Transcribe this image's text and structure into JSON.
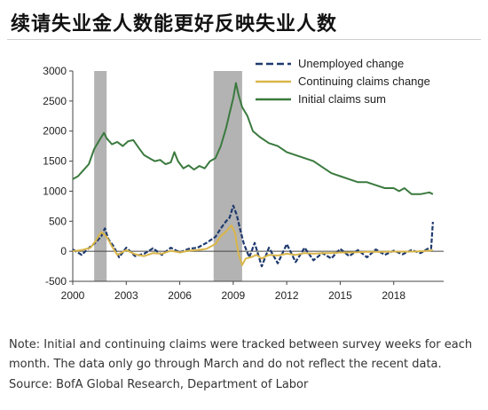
{
  "title": "续请失业金人数能更好反映失业人数",
  "note": "Note: Initial and continuing claims were tracked between survey weeks for each month. The data only go through March and do not reflect the recent data.",
  "source": "Source: BofA Global Research, Department of Labor",
  "chart_data": {
    "type": "line",
    "xlim": [
      2000,
      2020.8
    ],
    "ylim": [
      -500,
      3000
    ],
    "x_ticks": [
      2000,
      2003,
      2006,
      2009,
      2012,
      2015,
      2018
    ],
    "x_tick_labels": [
      "2000",
      "2003",
      "2006",
      "2009",
      "2012",
      "2015",
      "2018"
    ],
    "y_ticks": [
      -500,
      0,
      500,
      1000,
      1500,
      2000,
      2500,
      3000
    ],
    "y_tick_labels": [
      "-500",
      "0",
      "500",
      "1000",
      "1500",
      "2000",
      "2500",
      "3000"
    ],
    "grid": false,
    "legend_position": "top-right",
    "recessions": [
      [
        2001.2,
        2001.9
      ],
      [
        2007.9,
        2009.5
      ]
    ],
    "series": [
      {
        "name": "Unemployed change",
        "color": "#1f3a6e",
        "style": "dashed",
        "x": [
          2000,
          2000.5,
          2001,
          2001.3,
          2001.6,
          2001.8,
          2002.0,
          2002.3,
          2002.6,
          2003,
          2003.5,
          2004,
          2004.5,
          2005,
          2005.5,
          2006,
          2006.5,
          2007,
          2007.5,
          2008,
          2008.3,
          2008.6,
          2008.8,
          2009.0,
          2009.2,
          2009.4,
          2009.6,
          2009.9,
          2010.2,
          2010.6,
          2011,
          2011.5,
          2012,
          2012.5,
          2013,
          2013.5,
          2014,
          2014.5,
          2015,
          2015.5,
          2016,
          2016.5,
          2017,
          2017.5,
          2018,
          2018.5,
          2019,
          2019.5,
          2019.9,
          2020.1,
          2020.2
        ],
        "values": [
          30,
          -60,
          80,
          150,
          250,
          380,
          200,
          80,
          -100,
          60,
          -80,
          -40,
          50,
          -60,
          60,
          -20,
          40,
          60,
          140,
          240,
          380,
          500,
          560,
          760,
          600,
          350,
          120,
          -100,
          140,
          -250,
          60,
          -200,
          120,
          -180,
          60,
          -150,
          -30,
          -120,
          40,
          -80,
          20,
          -100,
          30,
          -60,
          10,
          -50,
          20,
          -30,
          40,
          50,
          490
        ]
      },
      {
        "name": "Continuing claims change",
        "color": "#d9b64a",
        "style": "solid",
        "x": [
          2000,
          2000.5,
          2001,
          2001.3,
          2001.6,
          2001.9,
          2002.2,
          2002.5,
          2003,
          2003.5,
          2004,
          2004.5,
          2005,
          2005.5,
          2006,
          2006.5,
          2007,
          2007.5,
          2008,
          2008.3,
          2008.6,
          2008.9,
          2009.1,
          2009.3,
          2009.5,
          2009.7,
          2010,
          2010.3,
          2010.6,
          2011,
          2011.5,
          2012,
          2012.5,
          2013,
          2013.5,
          2014,
          2014.5,
          2015,
          2015.5,
          2016,
          2016.5,
          2017,
          2017.5,
          2018,
          2018.5,
          2019,
          2019.5,
          2020.0,
          2020.2
        ],
        "values": [
          0,
          20,
          60,
          180,
          320,
          240,
          80,
          -60,
          20,
          -50,
          -80,
          -30,
          -40,
          10,
          -20,
          10,
          20,
          40,
          120,
          250,
          330,
          430,
          300,
          -50,
          -230,
          -120,
          -100,
          -60,
          -120,
          -60,
          -70,
          -40,
          -60,
          -30,
          -40,
          -30,
          -30,
          -20,
          -20,
          -15,
          -10,
          -10,
          -10,
          -5,
          -5,
          -5,
          0,
          10,
          20
        ]
      },
      {
        "name": "Initial claims sum",
        "color": "#3a7a3e",
        "style": "solid",
        "x": [
          2000,
          2000.3,
          2000.6,
          2000.9,
          2001.2,
          2001.5,
          2001.75,
          2001.9,
          2002.2,
          2002.5,
          2002.8,
          2003.1,
          2003.4,
          2003.7,
          2004.0,
          2004.3,
          2004.6,
          2004.9,
          2005.2,
          2005.5,
          2005.7,
          2005.9,
          2006.2,
          2006.5,
          2006.8,
          2007.1,
          2007.4,
          2007.7,
          2008.0,
          2008.3,
          2008.6,
          2008.8,
          2009.0,
          2009.15,
          2009.3,
          2009.5,
          2009.8,
          2010.1,
          2010.5,
          2011,
          2011.5,
          2012,
          2012.5,
          2013,
          2013.5,
          2014,
          2014.5,
          2015,
          2015.5,
          2016,
          2016.5,
          2017,
          2017.5,
          2018,
          2018.3,
          2018.6,
          2019,
          2019.5,
          2020.0,
          2020.2
        ],
        "values": [
          1200,
          1250,
          1350,
          1450,
          1700,
          1850,
          1970,
          1880,
          1780,
          1820,
          1750,
          1830,
          1850,
          1720,
          1600,
          1550,
          1500,
          1520,
          1450,
          1480,
          1650,
          1500,
          1380,
          1430,
          1360,
          1420,
          1380,
          1500,
          1550,
          1750,
          2050,
          2300,
          2550,
          2800,
          2600,
          2400,
          2250,
          2000,
          1900,
          1800,
          1750,
          1650,
          1600,
          1550,
          1500,
          1400,
          1300,
          1250,
          1200,
          1150,
          1150,
          1100,
          1050,
          1050,
          1000,
          1050,
          950,
          950,
          980,
          950
        ]
      }
    ]
  }
}
